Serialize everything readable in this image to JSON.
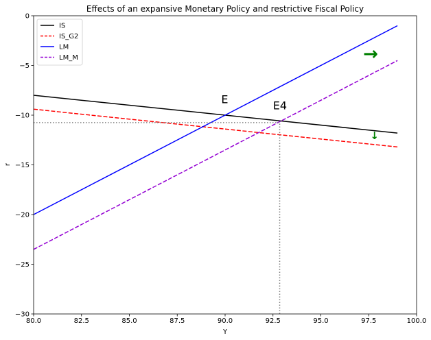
{
  "chart_data": {
    "type": "line",
    "title": "Effects of an expansive Monetary Policy and restrictive Fiscal Policy",
    "xlabel": "Y",
    "ylabel": "r",
    "xlim": [
      80,
      100
    ],
    "ylim": [
      -30,
      0
    ],
    "xticks": [
      80.0,
      82.5,
      85.0,
      87.5,
      90.0,
      92.5,
      95.0,
      97.5,
      100.0
    ],
    "xtick_labels": [
      "80.0",
      "82.5",
      "85.0",
      "87.5",
      "90.0",
      "92.5",
      "95.0",
      "97.5",
      "100.0"
    ],
    "yticks": [
      0,
      -5,
      -10,
      -15,
      -20,
      -25,
      -30
    ],
    "ytick_labels": [
      "0",
      "−5",
      "−10",
      "−15",
      "−20",
      "−25",
      "−30"
    ],
    "grid": false,
    "legend": "top-left",
    "series": [
      {
        "name": "IS",
        "x": [
          80,
          99
        ],
        "y": [
          -8.0,
          -11.8
        ],
        "color": "#000000",
        "dash": "solid"
      },
      {
        "name": "IS_G2",
        "x": [
          80,
          99
        ],
        "y": [
          -9.4,
          -13.2
        ],
        "color": "#ff0000",
        "dash": "dashed"
      },
      {
        "name": "LM",
        "x": [
          80,
          99
        ],
        "y": [
          -20.0,
          -1.0
        ],
        "color": "#0000ff",
        "dash": "solid"
      },
      {
        "name": "LM_M",
        "x": [
          80,
          99
        ],
        "y": [
          -23.5,
          -4.5
        ],
        "color": "#9400d3",
        "dash": "dashed"
      }
    ],
    "guides": {
      "color": "#808080",
      "horizontal": {
        "y": -10.75,
        "x_from": 80,
        "x_to": 92.85
      },
      "vertical": {
        "x": 92.85,
        "y_from": -30,
        "y_to": -10.75
      }
    },
    "annotations": [
      {
        "id": "E",
        "text": "E",
        "x": 89.8,
        "y": -8.8
      },
      {
        "id": "E4",
        "text": "E4",
        "x": 92.5,
        "y": -9.4
      }
    ],
    "arrows": [
      {
        "id": "lm-shift",
        "text": "→",
        "x": 97.6,
        "y": -4.4,
        "color": "#008000",
        "size": 26
      },
      {
        "id": "is-shift",
        "text": "↓",
        "x": 97.8,
        "y": -12.4,
        "color": "#008000",
        "size": 15
      }
    ]
  }
}
